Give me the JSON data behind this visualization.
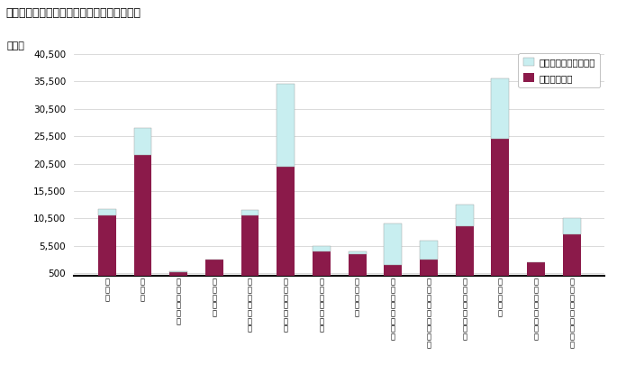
{
  "title": "図３－２　産業別労働者数（規模５人以上）",
  "ylabel": "（人）",
  "categories": [
    "建設業",
    "製造業",
    "電気・ガス業",
    "情報通信業",
    "運輸業，郵便業",
    "卸売業，小売業",
    "金融業，保険業",
    "学術研究等",
    "飲食サービス業等",
    "生活関連サービス等",
    "教育・学習支援業",
    "医療・福祉",
    "複合サービス事業",
    "その他のサービス業"
  ],
  "general_workers": [
    11000,
    22000,
    700,
    3000,
    11000,
    20000,
    4500,
    4000,
    2000,
    3000,
    9000,
    25000,
    2500,
    7500
  ],
  "parttime_workers": [
    1200,
    5000,
    200,
    0,
    1000,
    15000,
    1000,
    500,
    7500,
    3500,
    4000,
    11000,
    0,
    3000
  ],
  "general_color": "#8B1A4A",
  "parttime_color": "#C8EEF0",
  "yticks": [
    500,
    5500,
    10500,
    15500,
    20500,
    25500,
    30500,
    35500,
    40500
  ],
  "ytick_labels": [
    "500",
    "5,500",
    "10,500",
    "15,500",
    "20,500",
    "25,500",
    "30,500",
    "35,500",
    "40,500"
  ],
  "ymin": 0,
  "ymax": 42000,
  "legend_parttime": "パートタイム労働者数",
  "legend_general": "一般労働者数",
  "bg_color": "#FFFFFF"
}
